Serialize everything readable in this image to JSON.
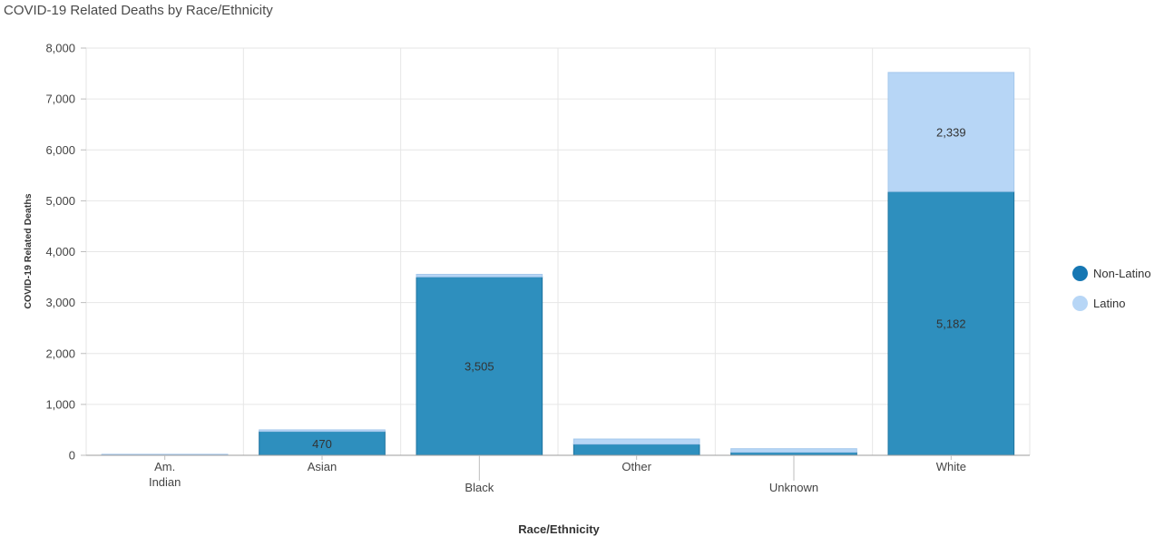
{
  "chart_data": {
    "type": "bar",
    "stacked": true,
    "title": "COVID-19 Related Deaths by Race/Ethnicity",
    "xlabel": "Race/Ethnicity",
    "ylabel": "COVID-19 Related Deaths",
    "ylim": [
      0,
      8000
    ],
    "yticks": [
      0,
      1000,
      2000,
      3000,
      4000,
      5000,
      6000,
      7000,
      8000
    ],
    "ytick_labels": [
      "0",
      "1,000",
      "2,000",
      "3,000",
      "4,000",
      "5,000",
      "6,000",
      "7,000",
      "8,000"
    ],
    "categories": [
      [
        "Am.",
        "Indian"
      ],
      [
        "Asian"
      ],
      [
        "Black"
      ],
      [
        "Other"
      ],
      [
        "Unknown"
      ],
      [
        "White"
      ]
    ],
    "series": [
      {
        "name": "Non-Latino",
        "color": "#2e8fbe",
        "values": [
          15,
          470,
          3505,
          220,
          60,
          5182
        ],
        "data_labels": [
          "",
          "470",
          "3,505",
          "",
          "",
          "5,182"
        ]
      },
      {
        "name": "Latino",
        "color": "#b7d6f6",
        "values": [
          5,
          30,
          50,
          100,
          70,
          2339
        ],
        "data_labels": [
          "",
          "",
          "",
          "",
          "",
          "2,339"
        ]
      }
    ],
    "grid": true,
    "legend_position": "right"
  },
  "legend_swatch_colors": [
    "#1677b3",
    "#b7d6f6"
  ]
}
